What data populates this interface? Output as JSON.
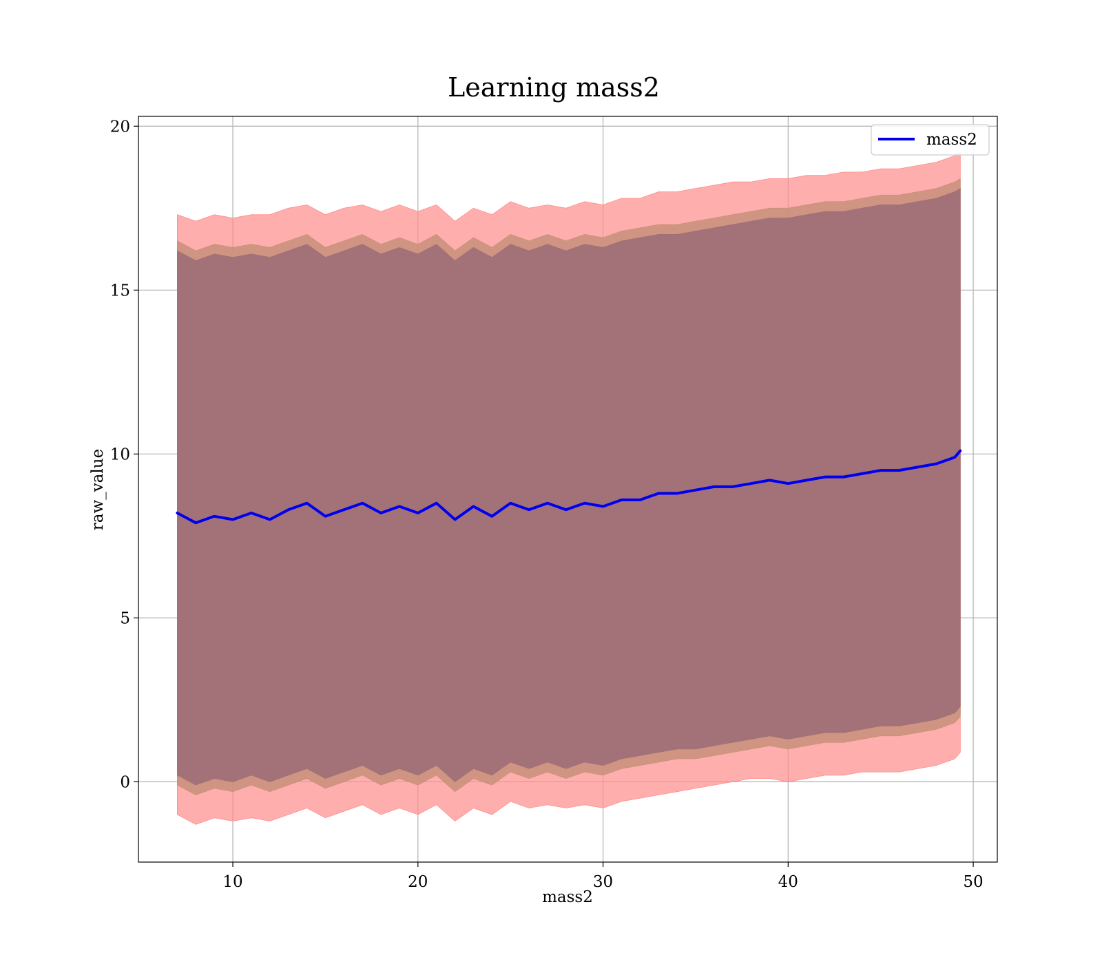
{
  "chart_data": {
    "type": "line",
    "title": "Learning mass2",
    "xlabel": "mass2",
    "ylabel": "raw_value",
    "xlim": [
      4.9,
      51.3
    ],
    "ylim": [
      -2.45,
      20.3
    ],
    "xticks": [
      10,
      20,
      30,
      40,
      50
    ],
    "yticks": [
      0,
      5,
      10,
      15,
      20
    ],
    "grid": true,
    "legend_position": "top-right",
    "colors": {
      "line": "#0000ee",
      "band_outer": "#ff8c8c",
      "band_middle": "#c8907a",
      "band_inner": "#a07078",
      "grid": "#b0b0b0"
    },
    "series": [
      {
        "name": "mass2",
        "x": [
          7.0,
          8.0,
          9.0,
          10.0,
          11.0,
          12.0,
          13.0,
          14.0,
          15.0,
          16.0,
          17.0,
          18.0,
          19.0,
          20.0,
          21.0,
          22.0,
          23.0,
          24.0,
          25.0,
          26.0,
          27.0,
          28.0,
          29.0,
          30.0,
          31.0,
          32.0,
          33.0,
          34.0,
          35.0,
          36.0,
          37.0,
          38.0,
          39.0,
          40.0,
          41.0,
          42.0,
          43.0,
          44.0,
          45.0,
          46.0,
          47.0,
          48.0,
          49.0,
          49.3
        ],
        "y": [
          8.2,
          7.9,
          8.1,
          8.0,
          8.2,
          8.0,
          8.3,
          8.5,
          8.1,
          8.3,
          8.5,
          8.2,
          8.4,
          8.2,
          8.5,
          8.0,
          8.4,
          8.1,
          8.5,
          8.3,
          8.5,
          8.3,
          8.5,
          8.4,
          8.6,
          8.6,
          8.8,
          8.8,
          8.9,
          9.0,
          9.0,
          9.1,
          9.2,
          9.1,
          9.2,
          9.3,
          9.3,
          9.4,
          9.5,
          9.5,
          9.6,
          9.7,
          9.9,
          10.1
        ]
      }
    ],
    "bands": [
      {
        "level": "outer",
        "upper": [
          17.3,
          17.1,
          17.3,
          17.2,
          17.3,
          17.3,
          17.5,
          17.6,
          17.3,
          17.5,
          17.6,
          17.4,
          17.6,
          17.4,
          17.6,
          17.1,
          17.5,
          17.3,
          17.7,
          17.5,
          17.6,
          17.5,
          17.7,
          17.6,
          17.8,
          17.8,
          18.0,
          18.0,
          18.1,
          18.2,
          18.3,
          18.3,
          18.4,
          18.4,
          18.5,
          18.5,
          18.6,
          18.6,
          18.7,
          18.7,
          18.8,
          18.9,
          19.1,
          19.2
        ],
        "lower": [
          -1.0,
          -1.3,
          -1.1,
          -1.2,
          -1.1,
          -1.2,
          -1.0,
          -0.8,
          -1.1,
          -0.9,
          -0.7,
          -1.0,
          -0.8,
          -1.0,
          -0.7,
          -1.2,
          -0.8,
          -1.0,
          -0.6,
          -0.8,
          -0.7,
          -0.8,
          -0.7,
          -0.8,
          -0.6,
          -0.5,
          -0.4,
          -0.3,
          -0.2,
          -0.1,
          0.0,
          0.1,
          0.1,
          0.0,
          0.1,
          0.2,
          0.2,
          0.3,
          0.3,
          0.3,
          0.4,
          0.5,
          0.7,
          0.9
        ]
      },
      {
        "level": "middle",
        "upper": [
          16.5,
          16.2,
          16.4,
          16.3,
          16.4,
          16.3,
          16.5,
          16.7,
          16.3,
          16.5,
          16.7,
          16.4,
          16.6,
          16.4,
          16.7,
          16.2,
          16.6,
          16.3,
          16.7,
          16.5,
          16.7,
          16.5,
          16.7,
          16.6,
          16.8,
          16.9,
          17.0,
          17.0,
          17.1,
          17.2,
          17.3,
          17.4,
          17.5,
          17.5,
          17.6,
          17.7,
          17.7,
          17.8,
          17.9,
          17.9,
          18.0,
          18.1,
          18.3,
          18.4
        ],
        "lower": [
          -0.1,
          -0.4,
          -0.2,
          -0.3,
          -0.1,
          -0.3,
          -0.1,
          0.1,
          -0.2,
          0.0,
          0.2,
          -0.1,
          0.1,
          -0.1,
          0.2,
          -0.3,
          0.1,
          -0.1,
          0.3,
          0.1,
          0.3,
          0.1,
          0.3,
          0.2,
          0.4,
          0.5,
          0.6,
          0.7,
          0.7,
          0.8,
          0.9,
          1.0,
          1.1,
          1.0,
          1.1,
          1.2,
          1.2,
          1.3,
          1.4,
          1.4,
          1.5,
          1.6,
          1.8,
          2.0
        ]
      },
      {
        "level": "inner",
        "upper": [
          16.2,
          15.9,
          16.1,
          16.0,
          16.1,
          16.0,
          16.2,
          16.4,
          16.0,
          16.2,
          16.4,
          16.1,
          16.3,
          16.1,
          16.4,
          15.9,
          16.3,
          16.0,
          16.4,
          16.2,
          16.4,
          16.2,
          16.4,
          16.3,
          16.5,
          16.6,
          16.7,
          16.7,
          16.8,
          16.9,
          17.0,
          17.1,
          17.2,
          17.2,
          17.3,
          17.4,
          17.4,
          17.5,
          17.6,
          17.6,
          17.7,
          17.8,
          18.0,
          18.1
        ],
        "lower": [
          0.2,
          -0.1,
          0.1,
          0.0,
          0.2,
          0.0,
          0.2,
          0.4,
          0.1,
          0.3,
          0.5,
          0.2,
          0.4,
          0.2,
          0.5,
          0.0,
          0.4,
          0.2,
          0.6,
          0.4,
          0.6,
          0.4,
          0.6,
          0.5,
          0.7,
          0.8,
          0.9,
          1.0,
          1.0,
          1.1,
          1.2,
          1.3,
          1.4,
          1.3,
          1.4,
          1.5,
          1.5,
          1.6,
          1.7,
          1.7,
          1.8,
          1.9,
          2.1,
          2.3
        ]
      }
    ]
  }
}
